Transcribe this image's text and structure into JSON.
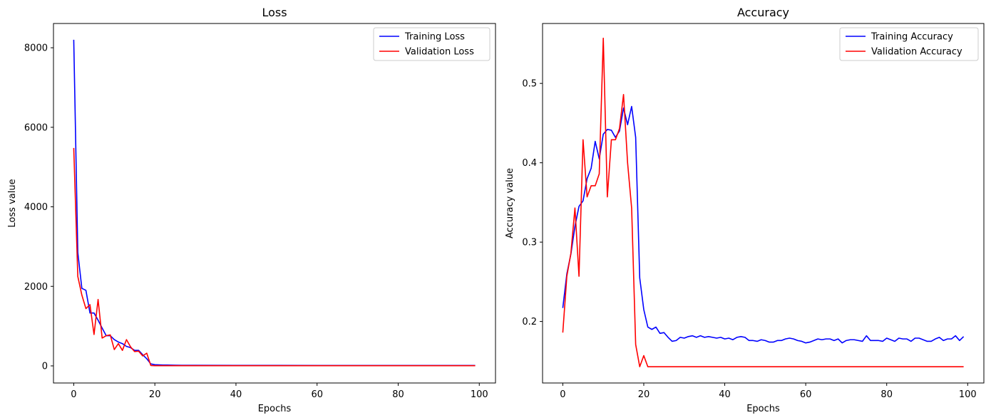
{
  "chart_data": [
    {
      "type": "line",
      "title": "Loss",
      "xlabel": "Epochs",
      "ylabel": "Loss value",
      "xlim": [
        -5,
        104
      ],
      "ylim": [
        -430,
        8610
      ],
      "xticks": [
        0,
        20,
        40,
        60,
        80,
        100
      ],
      "yticks": [
        0,
        2000,
        4000,
        6000,
        8000
      ],
      "grid": false,
      "legend_position": "top-right",
      "series": [
        {
          "name": "Training Loss",
          "color": "#0000ff",
          "x": [
            0,
            1,
            2,
            3,
            4,
            5,
            6,
            7,
            8,
            9,
            10,
            11,
            12,
            13,
            14,
            15,
            16,
            17,
            18,
            19,
            20,
            21,
            22,
            23,
            24,
            25,
            30,
            40,
            50,
            60,
            70,
            80,
            90,
            99
          ],
          "y": [
            8200,
            2850,
            1950,
            1900,
            1330,
            1330,
            1150,
            950,
            760,
            760,
            660,
            600,
            560,
            490,
            460,
            390,
            390,
            280,
            180,
            50,
            30,
            25,
            22,
            20,
            18,
            16,
            14,
            12,
            11,
            10,
            10,
            9,
            9,
            9
          ]
        },
        {
          "name": "Validation Loss",
          "color": "#ff0000",
          "x": [
            0,
            1,
            2,
            3,
            4,
            5,
            6,
            7,
            8,
            9,
            10,
            11,
            12,
            13,
            14,
            15,
            16,
            17,
            18,
            19,
            20,
            21,
            22,
            23,
            24,
            25,
            30,
            40,
            50,
            60,
            70,
            80,
            90,
            99
          ],
          "y": [
            5480,
            2250,
            1780,
            1440,
            1540,
            790,
            1670,
            700,
            760,
            780,
            410,
            560,
            390,
            660,
            480,
            360,
            370,
            250,
            320,
            10,
            5,
            5,
            5,
            5,
            5,
            5,
            5,
            5,
            5,
            5,
            5,
            5,
            5,
            5
          ]
        }
      ]
    },
    {
      "type": "line",
      "title": "Accuracy",
      "xlabel": "Epochs",
      "ylabel": "Accuracy value",
      "xlim": [
        -5,
        104
      ],
      "ylim": [
        0.1225,
        0.5755
      ],
      "xticks": [
        0,
        20,
        40,
        60,
        80,
        100
      ],
      "yticks": [
        0.2,
        0.3,
        0.4,
        0.5
      ],
      "grid": false,
      "legend_position": "top-right",
      "series": [
        {
          "name": "Training Accuracy",
          "color": "#0000ff",
          "x": [
            0,
            1,
            2,
            3,
            4,
            5,
            6,
            7,
            8,
            9,
            10,
            11,
            12,
            13,
            14,
            15,
            16,
            17,
            18,
            19,
            20,
            21,
            22,
            23,
            24,
            25,
            26,
            27,
            28,
            29,
            30,
            31,
            32,
            33,
            34,
            35,
            36,
            37,
            38,
            39,
            40,
            41,
            42,
            43,
            44,
            45,
            46,
            47,
            48,
            49,
            50,
            51,
            52,
            53,
            54,
            55,
            56,
            57,
            58,
            59,
            60,
            61,
            62,
            63,
            64,
            65,
            66,
            67,
            68,
            69,
            70,
            71,
            72,
            73,
            74,
            75,
            76,
            77,
            78,
            79,
            80,
            81,
            82,
            83,
            84,
            85,
            86,
            87,
            88,
            89,
            90,
            91,
            92,
            93,
            94,
            95,
            96,
            97,
            98,
            99
          ],
          "y": [
            0.217,
            0.26,
            0.285,
            0.32,
            0.345,
            0.352,
            0.38,
            0.393,
            0.427,
            0.405,
            0.436,
            0.442,
            0.441,
            0.432,
            0.44,
            0.469,
            0.448,
            0.471,
            0.432,
            0.255,
            0.215,
            0.193,
            0.19,
            0.193,
            0.185,
            0.186,
            0.18,
            0.175,
            0.176,
            0.18,
            0.179,
            0.181,
            0.182,
            0.18,
            0.182,
            0.18,
            0.181,
            0.18,
            0.179,
            0.18,
            0.178,
            0.179,
            0.177,
            0.18,
            0.181,
            0.18,
            0.176,
            0.176,
            0.175,
            0.177,
            0.176,
            0.174,
            0.174,
            0.176,
            0.176,
            0.178,
            0.179,
            0.178,
            0.176,
            0.175,
            0.173,
            0.174,
            0.176,
            0.178,
            0.177,
            0.178,
            0.178,
            0.176,
            0.178,
            0.173,
            0.176,
            0.177,
            0.177,
            0.176,
            0.175,
            0.182,
            0.176,
            0.176,
            0.176,
            0.175,
            0.179,
            0.177,
            0.175,
            0.179,
            0.178,
            0.178,
            0.175,
            0.179,
            0.179,
            0.177,
            0.175,
            0.175,
            0.178,
            0.18,
            0.176,
            0.178,
            0.178,
            0.182,
            0.176,
            0.181
          ]
        },
        {
          "name": "Validation Accuracy",
          "color": "#ff0000",
          "x": [
            0,
            1,
            2,
            3,
            4,
            5,
            6,
            7,
            8,
            9,
            10,
            11,
            12,
            13,
            14,
            15,
            16,
            17,
            18,
            19,
            20,
            21,
            22,
            30,
            40,
            50,
            60,
            70,
            80,
            90,
            99
          ],
          "y": [
            0.186,
            0.257,
            0.286,
            0.343,
            0.257,
            0.429,
            0.357,
            0.371,
            0.371,
            0.386,
            0.557,
            0.357,
            0.429,
            0.429,
            0.443,
            0.486,
            0.4,
            0.343,
            0.171,
            0.143,
            0.157,
            0.143,
            0.143,
            0.143,
            0.143,
            0.143,
            0.143,
            0.143,
            0.143,
            0.143,
            0.143
          ]
        }
      ]
    }
  ]
}
